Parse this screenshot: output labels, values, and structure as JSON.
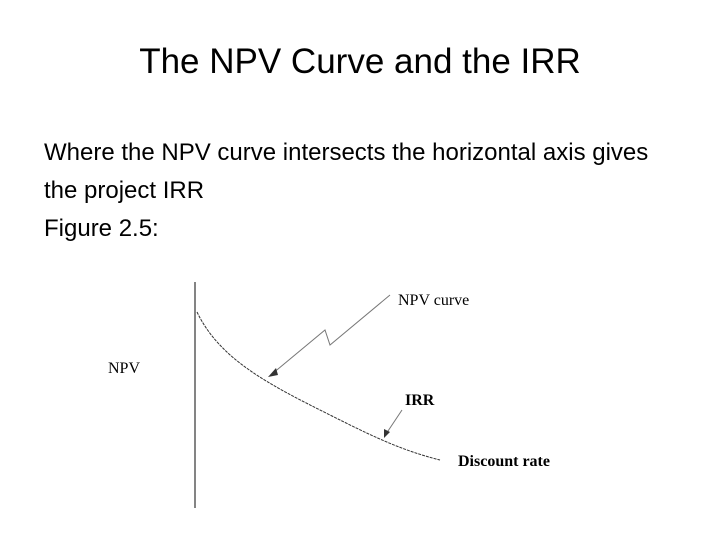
{
  "slide": {
    "title": "The NPV Curve and the IRR",
    "body": [
      "Where the NPV curve intersects the horizontal axis gives the project IRR",
      "Figure 2.5:"
    ],
    "figure": {
      "y_label": "NPV",
      "curve_label": "NPV curve",
      "irr_label": "IRR",
      "x_label": "Discount rate"
    }
  }
}
